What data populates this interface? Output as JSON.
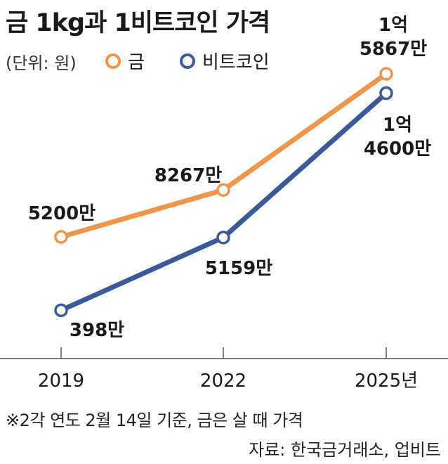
{
  "title": "금 1kg과 1비트코인 가격",
  "unit": "(단위: 원)",
  "colors": {
    "gold": "#f0954a",
    "bitcoin": "#3c5a99"
  },
  "chart_data": {
    "type": "line",
    "x": [
      "2019",
      "2022",
      "2025년"
    ],
    "series": [
      {
        "name": "금",
        "values": [
          52000000,
          82670000,
          158670000
        ],
        "labels": [
          "5200만",
          "8267만",
          "1억\n5867만"
        ]
      },
      {
        "name": "비트코인",
        "values": [
          3980000,
          51590000,
          146000000
        ],
        "labels": [
          "398만",
          "5159만",
          "1억\n4600만"
        ]
      }
    ],
    "ylim": [
      0,
      160000000
    ],
    "legend": "top",
    "grid": false
  },
  "note": "※2각 연도 2월 14일 기준, 금은 살 때 가격",
  "source": "자료: 한국금거래소, 업비트"
}
